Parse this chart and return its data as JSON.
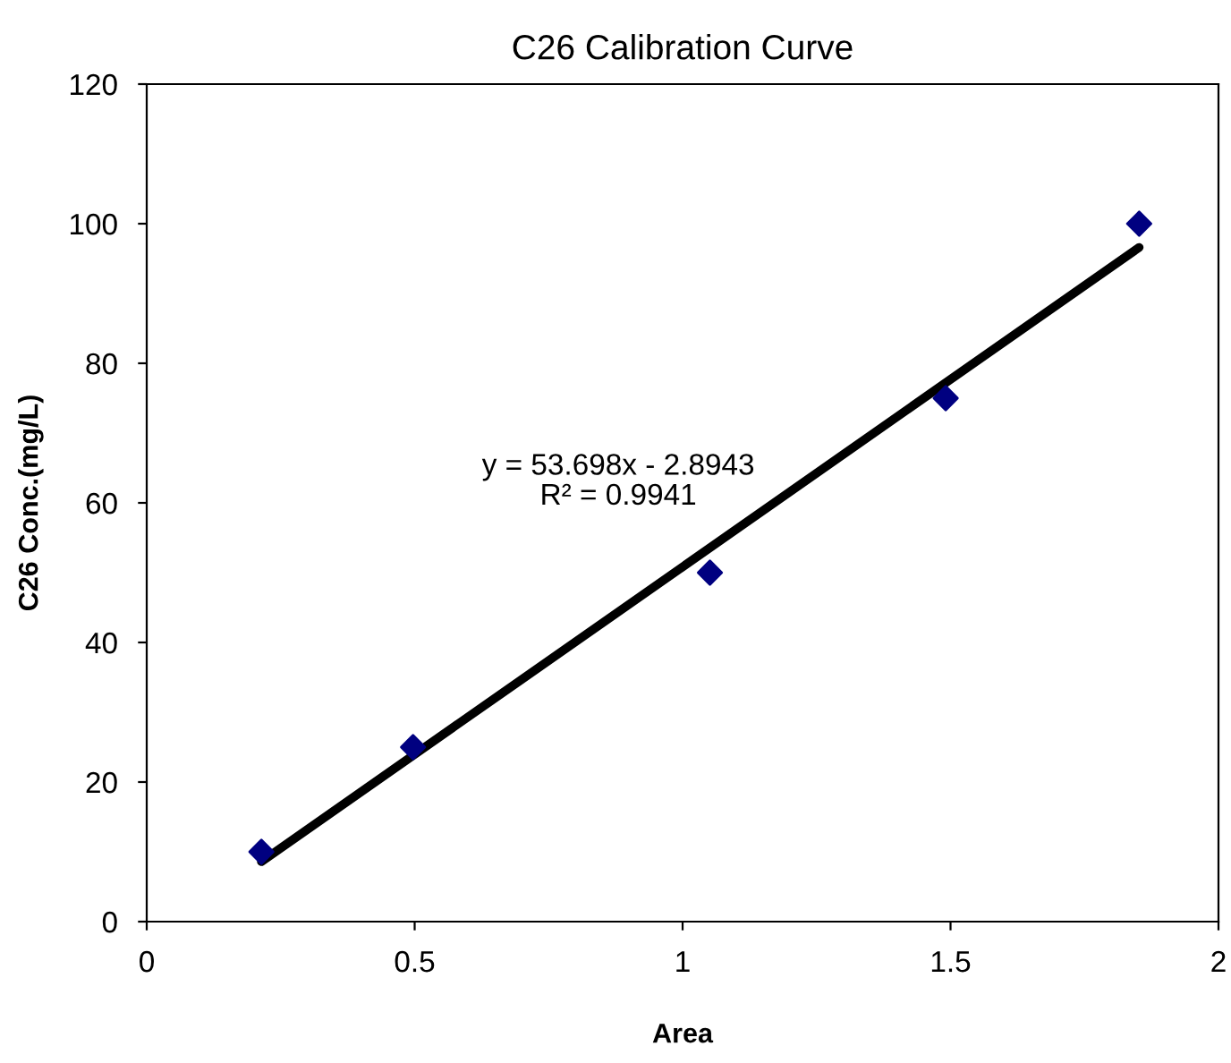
{
  "chart_data": {
    "type": "scatter",
    "title": "C26 Calibration Curve",
    "xlabel": "Area",
    "ylabel": "C26 Conc.(mg/L)",
    "series": [
      {
        "color": "#000080",
        "marker": "diamond",
        "x": [
          0.214,
          0.497,
          1.051,
          1.491,
          1.852
        ],
        "values": [
          10,
          25,
          50,
          75,
          100
        ]
      },
      {
        "type": "line",
        "color": "#000000",
        "marker": "none",
        "x": [
          0.214,
          1.852
        ],
        "values": [
          8.6,
          96.6
        ]
      }
    ],
    "annotations": [
      "y = 53.698x - 2.8943\nR² = 0.9941"
    ],
    "xlim": [
      0,
      2
    ],
    "xticks": [
      0,
      0.5,
      1,
      1.5,
      2
    ],
    "ylim": [
      0,
      120
    ],
    "yticks": [
      0,
      20,
      40,
      60,
      80,
      100,
      120
    ],
    "grid": false,
    "legend": false
  }
}
